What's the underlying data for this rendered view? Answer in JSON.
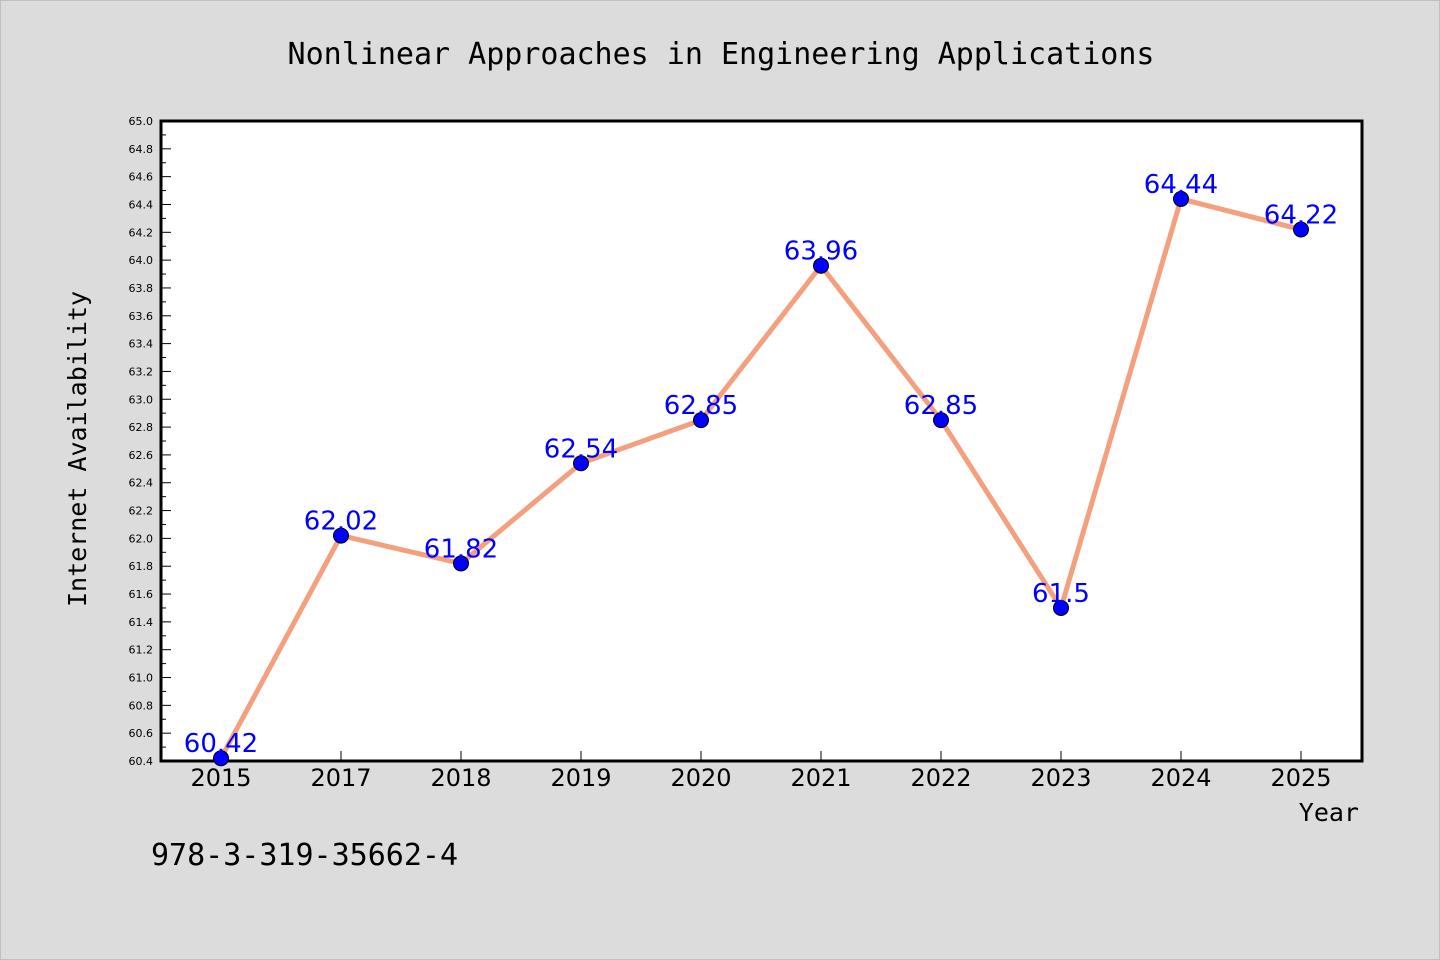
{
  "chart_data": {
    "type": "line",
    "title": "Nonlinear Approaches in Engineering Applications",
    "xlabel": "Year",
    "ylabel": "Internet Availability",
    "categories": [
      "2015",
      "2017",
      "2018",
      "2019",
      "2020",
      "2021",
      "2022",
      "2023",
      "2024",
      "2025"
    ],
    "series": [
      {
        "values": [
          60.42,
          62.02,
          61.82,
          62.54,
          62.85,
          63.96,
          62.85,
          61.5,
          64.44,
          64.22
        ]
      }
    ],
    "data_labels": [
      "60.42",
      "62.02",
      "61.82",
      "62.54",
      "62.85",
      "63.96",
      "62.85",
      "61.5",
      "64.44",
      "64.22"
    ],
    "ylim": [
      60.4,
      65.0
    ],
    "yticks": [
      "60.4",
      "60.6",
      "60.8",
      "61.0",
      "61.2",
      "61.4",
      "61.6",
      "61.8",
      "62.0",
      "62.2",
      "62.4",
      "62.6",
      "62.8",
      "63.0",
      "63.2",
      "63.4",
      "63.6",
      "63.8",
      "64.0",
      "64.2",
      "64.4",
      "64.6",
      "64.8",
      "65.0"
    ],
    "grid": false,
    "legend": "none",
    "colors": {
      "line": "#f4a07e",
      "marker": "#0000ff",
      "data_label": "#0000ff",
      "plot_background": "#ffffff",
      "page_background": "#dcdcdc"
    }
  },
  "footer": {
    "text": "978-3-319-35662-4"
  }
}
